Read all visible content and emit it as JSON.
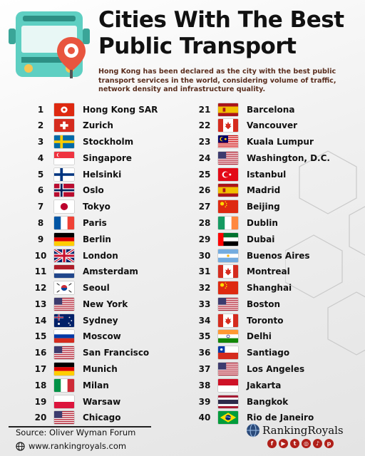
{
  "title": "Cities With The Best Public Transport",
  "subtitle": "Hong Kong has been declared as the city with the best public transport services in the world, considering volume of traffic, network density and infrastructure quality.",
  "left_list": [
    {
      "rank": "1",
      "city": "Hong Kong SAR",
      "flag": "hk"
    },
    {
      "rank": "2",
      "city": "Zurich",
      "flag": "ch"
    },
    {
      "rank": "3",
      "city": "Stockholm",
      "flag": "se"
    },
    {
      "rank": "4",
      "city": "Singapore",
      "flag": "sg"
    },
    {
      "rank": "5",
      "city": "Helsinki",
      "flag": "fi"
    },
    {
      "rank": "6",
      "city": "Oslo",
      "flag": "no"
    },
    {
      "rank": "7",
      "city": "Tokyo",
      "flag": "jp"
    },
    {
      "rank": "8",
      "city": "Paris",
      "flag": "fr"
    },
    {
      "rank": "9",
      "city": "Berlin",
      "flag": "de"
    },
    {
      "rank": "10",
      "city": "London",
      "flag": "gb"
    },
    {
      "rank": "11",
      "city": "Amsterdam",
      "flag": "nl"
    },
    {
      "rank": "12",
      "city": "Seoul",
      "flag": "kr"
    },
    {
      "rank": "13",
      "city": "New York",
      "flag": "us"
    },
    {
      "rank": "14",
      "city": "Sydney",
      "flag": "au"
    },
    {
      "rank": "15",
      "city": "Moscow",
      "flag": "ru"
    },
    {
      "rank": "16",
      "city": "San Francisco",
      "flag": "us"
    },
    {
      "rank": "17",
      "city": "Munich",
      "flag": "de"
    },
    {
      "rank": "18",
      "city": "Milan",
      "flag": "it"
    },
    {
      "rank": "19",
      "city": "Warsaw",
      "flag": "pl"
    },
    {
      "rank": "20",
      "city": "Chicago",
      "flag": "us"
    }
  ],
  "right_list": [
    {
      "rank": "21",
      "city": "Barcelona",
      "flag": "es"
    },
    {
      "rank": "22",
      "city": "Vancouver",
      "flag": "ca"
    },
    {
      "rank": "23",
      "city": "Kuala Lumpur",
      "flag": "my"
    },
    {
      "rank": "24",
      "city": "Washington, D.C.",
      "flag": "us"
    },
    {
      "rank": "25",
      "city": "Istanbul",
      "flag": "tr"
    },
    {
      "rank": "26",
      "city": "Madrid",
      "flag": "es"
    },
    {
      "rank": "27",
      "city": "Beijing",
      "flag": "cn"
    },
    {
      "rank": "28",
      "city": "Dublin",
      "flag": "ie"
    },
    {
      "rank": "29",
      "city": "Dubai",
      "flag": "ae"
    },
    {
      "rank": "30",
      "city": "Buenos Aires",
      "flag": "ar"
    },
    {
      "rank": "31",
      "city": "Montreal",
      "flag": "ca"
    },
    {
      "rank": "32",
      "city": "Shanghai",
      "flag": "cn"
    },
    {
      "rank": "33",
      "city": "Boston",
      "flag": "us"
    },
    {
      "rank": "34",
      "city": "Toronto",
      "flag": "ca"
    },
    {
      "rank": "35",
      "city": "Delhi",
      "flag": "in"
    },
    {
      "rank": "36",
      "city": "Santiago",
      "flag": "cl"
    },
    {
      "rank": "37",
      "city": "Los Angeles",
      "flag": "us"
    },
    {
      "rank": "38",
      "city": "Jakarta",
      "flag": "id"
    },
    {
      "rank": "39",
      "city": "Bangkok",
      "flag": "th"
    },
    {
      "rank": "40",
      "city": "Rio de Janeiro",
      "flag": "br"
    }
  ],
  "source": "Source: Oliver Wyman Forum",
  "website": "www.rankingroyals.com",
  "brand": "RankingRoyals",
  "socials": [
    "facebook-icon",
    "youtube-icon",
    "twitter-icon",
    "instagram-icon",
    "tiktok-icon",
    "pinterest-icon"
  ],
  "colors": {
    "title": "#111111",
    "subtitle": "#5a2e1e",
    "bus": "#5ecfc2",
    "pin": "#e8553f",
    "social": "#b0201a"
  }
}
